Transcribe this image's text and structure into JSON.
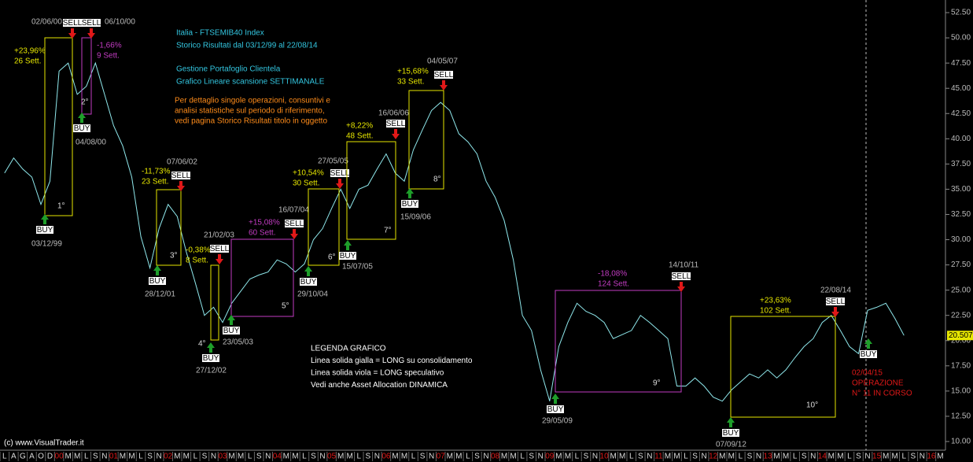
{
  "chart_data": {
    "type": "line",
    "title_lines": [
      "Italia - FTSEMIB40 Index",
      "Storico Risultati dal 03/12/99 al 22/08/14",
      "Gestione Portafoglio Clientela",
      "Grafico Lineare scansione SETTIMANALE"
    ],
    "note_lines": [
      "Per dettaglio singole operazioni, consuntivi e",
      "analisi statistiche sul periodo di riferimento,",
      "vedi pagina Storico Risultati titolo in oggetto"
    ],
    "legend_lines": [
      "LEGENDA GRAFICO",
      "Linea solida gialla = LONG su consolidamento",
      "Linea solida viola = LONG speculativo",
      "Vedi anche Asset Allocation DINAMICA"
    ],
    "copyright": "(c) www.VisualTrader.it",
    "buy_label": "BUY",
    "sell_label": "SELL",
    "categories": [
      "L",
      "A",
      "G",
      "A",
      "O",
      "D",
      "00",
      "M",
      "M",
      "L",
      "S",
      "N",
      "01",
      "M",
      "M",
      "L",
      "S",
      "N",
      "02",
      "M",
      "M",
      "L",
      "S",
      "N",
      "03",
      "M",
      "M",
      "L",
      "S",
      "N",
      "04",
      "M",
      "M",
      "L",
      "S",
      "N",
      "05",
      "M",
      "M",
      "L",
      "S",
      "N",
      "06",
      "M",
      "M",
      "L",
      "S",
      "N",
      "07",
      "M",
      "M",
      "L",
      "S",
      "N",
      "08",
      "M",
      "M",
      "L",
      "S",
      "N",
      "09",
      "M",
      "M",
      "L",
      "S",
      "N",
      "10",
      "M",
      "M",
      "L",
      "S",
      "N",
      "11",
      "M",
      "M",
      "L",
      "S",
      "N",
      "12",
      "M",
      "M",
      "L",
      "S",
      "N",
      "13",
      "M",
      "M",
      "L",
      "S",
      "N",
      "14",
      "M",
      "M",
      "L",
      "S",
      "N",
      "15",
      "M",
      "M",
      "L",
      "S",
      "N",
      "16",
      "M"
    ],
    "series": [
      {
        "color": "#8fe8ec",
        "values": [
          36.6,
          38.1,
          37,
          36.2,
          33.5,
          35.8,
          46.7,
          47.5,
          44.4,
          45.2,
          47.5,
          44.4,
          41.3,
          39.3,
          36.2,
          30.3,
          27.2,
          31.1,
          33.5,
          32.3,
          28.8,
          25.7,
          22.5,
          23.3,
          21.8,
          23.7,
          24.9,
          26.1,
          26.5,
          26.8,
          28,
          27.6,
          26.8,
          27.6,
          30,
          31.1,
          33.1,
          35,
          33.1,
          35,
          35.4,
          37,
          38.5,
          36.6,
          35.8,
          38.9,
          40.9,
          42.8,
          43.6,
          42.8,
          40.5,
          39.7,
          38.5,
          35.8,
          34.2,
          31.9,
          28,
          22.5,
          21,
          17.1,
          14,
          19.4,
          21.8,
          23.7,
          22.9,
          22.5,
          21.8,
          20.2,
          20.6,
          21,
          22.5,
          21.8,
          21,
          20.2,
          15.5,
          15.5,
          16.3,
          15.5,
          14.4,
          14,
          15.1,
          15.9,
          16.7,
          16.3,
          17.1,
          16.3,
          17.1,
          18.3,
          19.4,
          20.2,
          21.8,
          22.5,
          21,
          19.4,
          18.7,
          23,
          23.3,
          23.7,
          22.2,
          20.507,
          null,
          null,
          null,
          null
        ]
      }
    ],
    "ylim": [
      9.14,
      53.75
    ],
    "yticks": [
      {
        "value": 10,
        "label": "10.00"
      },
      {
        "value": 12.5,
        "label": "12.50"
      },
      {
        "value": 15,
        "label": "15.00"
      },
      {
        "value": 17.5,
        "label": "17.50"
      },
      {
        "value": 20,
        "label": "20.00"
      },
      {
        "value": 22.5,
        "label": "22.50"
      },
      {
        "value": 25,
        "label": "25.00"
      },
      {
        "value": 27.5,
        "label": "27.50"
      },
      {
        "value": 30,
        "label": "30.00"
      },
      {
        "value": 32.5,
        "label": "32.50"
      },
      {
        "value": 35,
        "label": "35.00"
      },
      {
        "value": 37.5,
        "label": "37.50"
      },
      {
        "value": 40,
        "label": "40.00"
      },
      {
        "value": 42.5,
        "label": "42.50"
      },
      {
        "value": 45,
        "label": "45.00"
      },
      {
        "value": 47.5,
        "label": "47.50"
      },
      {
        "value": 50,
        "label": "50.00"
      },
      {
        "value": 52.5,
        "label": "52.50"
      }
    ],
    "trades": [
      {
        "number": "1°",
        "result": "+23,96%",
        "weeks": "26 Sett.",
        "buy_date": "03/12/99",
        "sell_date": "02/06/00",
        "color": "#e6e600"
      },
      {
        "number": "2°",
        "result": "-1,66%",
        "weeks": "9 Sett.",
        "buy_date": "04/08/00",
        "sell_date": "06/10/00",
        "color": "#c23cc2"
      },
      {
        "number": "3°",
        "result": "-11,73%",
        "weeks": "23 Sett.",
        "buy_date": "28/12/01",
        "sell_date": "07/06/02",
        "color": "#e6e600"
      },
      {
        "number": "4°",
        "result": "-0,38%",
        "weeks": "8 Sett.",
        "buy_date": "27/12/02",
        "sell_date": "21/02/03",
        "color": "#e6e600"
      },
      {
        "number": "5°",
        "result": "+15,08%",
        "weeks": "60 Sett.",
        "buy_date": "23/05/03",
        "sell_date": "16/07/04",
        "color": "#c23cc2"
      },
      {
        "number": "6°",
        "result": "+10,54%",
        "weeks": "30 Sett.",
        "buy_date": "29/10/04",
        "sell_date": "27/05/05",
        "color": "#e6e600"
      },
      {
        "number": "7°",
        "result": "+8,22%",
        "weeks": "48 Sett.",
        "buy_date": "15/07/05",
        "sell_date": "16/06/06",
        "color": "#e6e600"
      },
      {
        "number": "8°",
        "result": "+15,68%",
        "weeks": "33 Sett.",
        "buy_date": "15/09/06",
        "sell_date": "04/05/07",
        "color": "#e6e600"
      },
      {
        "number": "9°",
        "result": "-18,08%",
        "weeks": "124 Sett.",
        "buy_date": "29/05/09",
        "sell_date": "14/10/11",
        "color": "#c23cc2"
      },
      {
        "number": "10°",
        "result": "+23,63%",
        "weeks": "102 Sett.",
        "buy_date": "07/09/12",
        "sell_date": "22/08/14",
        "color": "#e6e600"
      }
    ],
    "open_trade": {
      "lines": [
        "02/04/15",
        "OPERAZIONE",
        "N° 11 IN CORSO"
      ],
      "color": "#e01818"
    }
  }
}
